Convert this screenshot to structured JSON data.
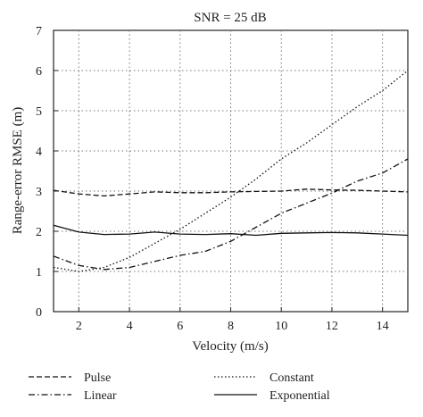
{
  "chart_data": {
    "type": "line",
    "title": "SNR = 25 dB",
    "xlabel": "Velocity (m/s)",
    "ylabel": "Range-error RMSE (m)",
    "xlim": [
      1,
      15
    ],
    "ylim": [
      0,
      7
    ],
    "xticks": [
      2,
      4,
      6,
      8,
      10,
      12,
      14
    ],
    "yticks": [
      0,
      1,
      2,
      3,
      4,
      5,
      6,
      7
    ],
    "grid": true,
    "legend_position": "bottom",
    "series": [
      {
        "name": "Pulse",
        "style": "dashed",
        "x": [
          1,
          2,
          3,
          4,
          5,
          6,
          7,
          8,
          9,
          10,
          11,
          12,
          13,
          14,
          15
        ],
        "y": [
          3.02,
          2.93,
          2.88,
          2.93,
          2.98,
          2.96,
          2.96,
          2.98,
          2.99,
          3.0,
          3.05,
          3.03,
          3.02,
          3.0,
          2.98
        ]
      },
      {
        "name": "Constant",
        "style": "dotted",
        "x": [
          1,
          2,
          3,
          4,
          5,
          6,
          7,
          8,
          9,
          10,
          11,
          12,
          13,
          14,
          15
        ],
        "y": [
          1.1,
          1.0,
          1.1,
          1.35,
          1.7,
          2.05,
          2.45,
          2.85,
          3.3,
          3.8,
          4.2,
          4.65,
          5.1,
          5.5,
          6.0
        ]
      },
      {
        "name": "Linear",
        "style": "dashdot",
        "x": [
          1,
          2,
          3,
          4,
          5,
          6,
          7,
          8,
          9,
          10,
          11,
          12,
          13,
          14,
          15
        ],
        "y": [
          1.38,
          1.15,
          1.05,
          1.1,
          1.25,
          1.4,
          1.5,
          1.75,
          2.1,
          2.45,
          2.7,
          2.95,
          3.25,
          3.45,
          3.8
        ]
      },
      {
        "name": "Exponential",
        "style": "solid",
        "x": [
          1,
          2,
          3,
          4,
          5,
          6,
          7,
          8,
          9,
          10,
          11,
          12,
          13,
          14,
          15
        ],
        "y": [
          2.15,
          1.98,
          1.92,
          1.93,
          1.98,
          1.93,
          1.92,
          1.94,
          1.9,
          1.95,
          1.96,
          1.97,
          1.96,
          1.93,
          1.9
        ]
      }
    ]
  }
}
